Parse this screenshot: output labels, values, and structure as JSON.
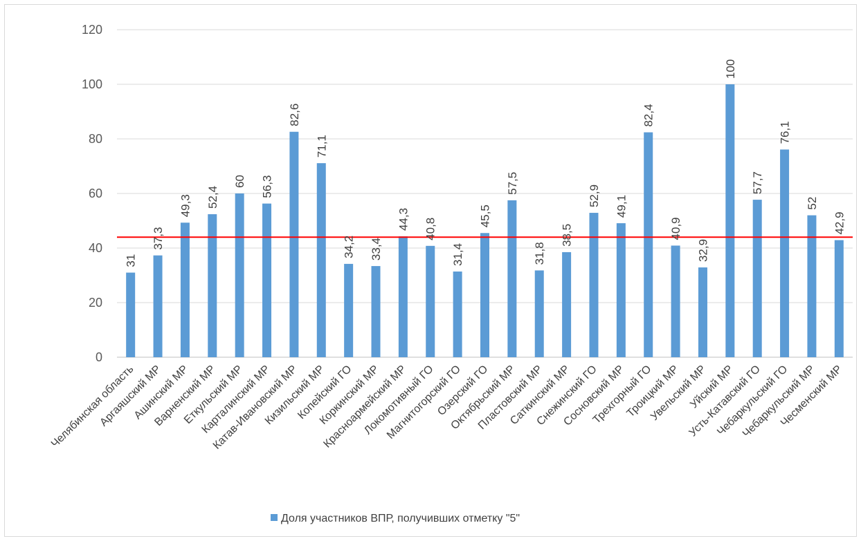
{
  "chart_data": {
    "type": "bar",
    "categories": [
      "Челябинская область",
      "Аргаяшский МР",
      "Ашинский МР",
      "Варненский МР",
      "Еткульский МР",
      "Карталинский МР",
      "Катав-Ивановский МР",
      "Кизильский МР",
      "Копейский ГО",
      "Коркинский МР",
      "Красноармейский МР",
      "Локомотивный ГО",
      "Магнитогорский ГО",
      "Озерский ГО",
      "Октябрьский МР",
      "Пластовский МР",
      "Саткинский МР",
      "Снежинский ГО",
      "Сосновский МР",
      "Трехгорный ГО",
      "Троицкий МР",
      "Увельский МР",
      "Уйский МР",
      "Усть-Катавский ГО",
      "Чебаркульский ГО",
      "Чебаркульский МР",
      "Чесменский МР"
    ],
    "series": [
      {
        "name": "Доля участников ВПР, получивших отметку \"5\"",
        "values": [
          31,
          37.3,
          49.3,
          52.4,
          60,
          56.3,
          82.6,
          71.1,
          34.2,
          33.4,
          44.3,
          40.8,
          31.4,
          45.5,
          57.5,
          31.8,
          38.5,
          52.9,
          49.1,
          82.4,
          40.9,
          32.9,
          100,
          57.7,
          76.1,
          52,
          42.9
        ],
        "labels": [
          "31",
          "37,3",
          "49,3",
          "52,4",
          "60",
          "56,3",
          "82,6",
          "71,1",
          "34,2",
          "33,4",
          "44,3",
          "40,8",
          "31,4",
          "45,5",
          "57,5",
          "31,8",
          "38,5",
          "52,9",
          "49,1",
          "82,4",
          "40,9",
          "32,9",
          "100",
          "57,7",
          "76,1",
          "52",
          "42,9"
        ]
      }
    ],
    "reference_line": {
      "value": 44
    },
    "ylim": [
      0,
      120
    ],
    "yticks": [
      "0",
      "20",
      "40",
      "60",
      "80",
      "100",
      "120"
    ],
    "grid": true,
    "legend": "bottom",
    "colors": {
      "bar": "#5b9bd5",
      "reference_line": "#ff0000",
      "grid": "#d9d9d9"
    }
  }
}
